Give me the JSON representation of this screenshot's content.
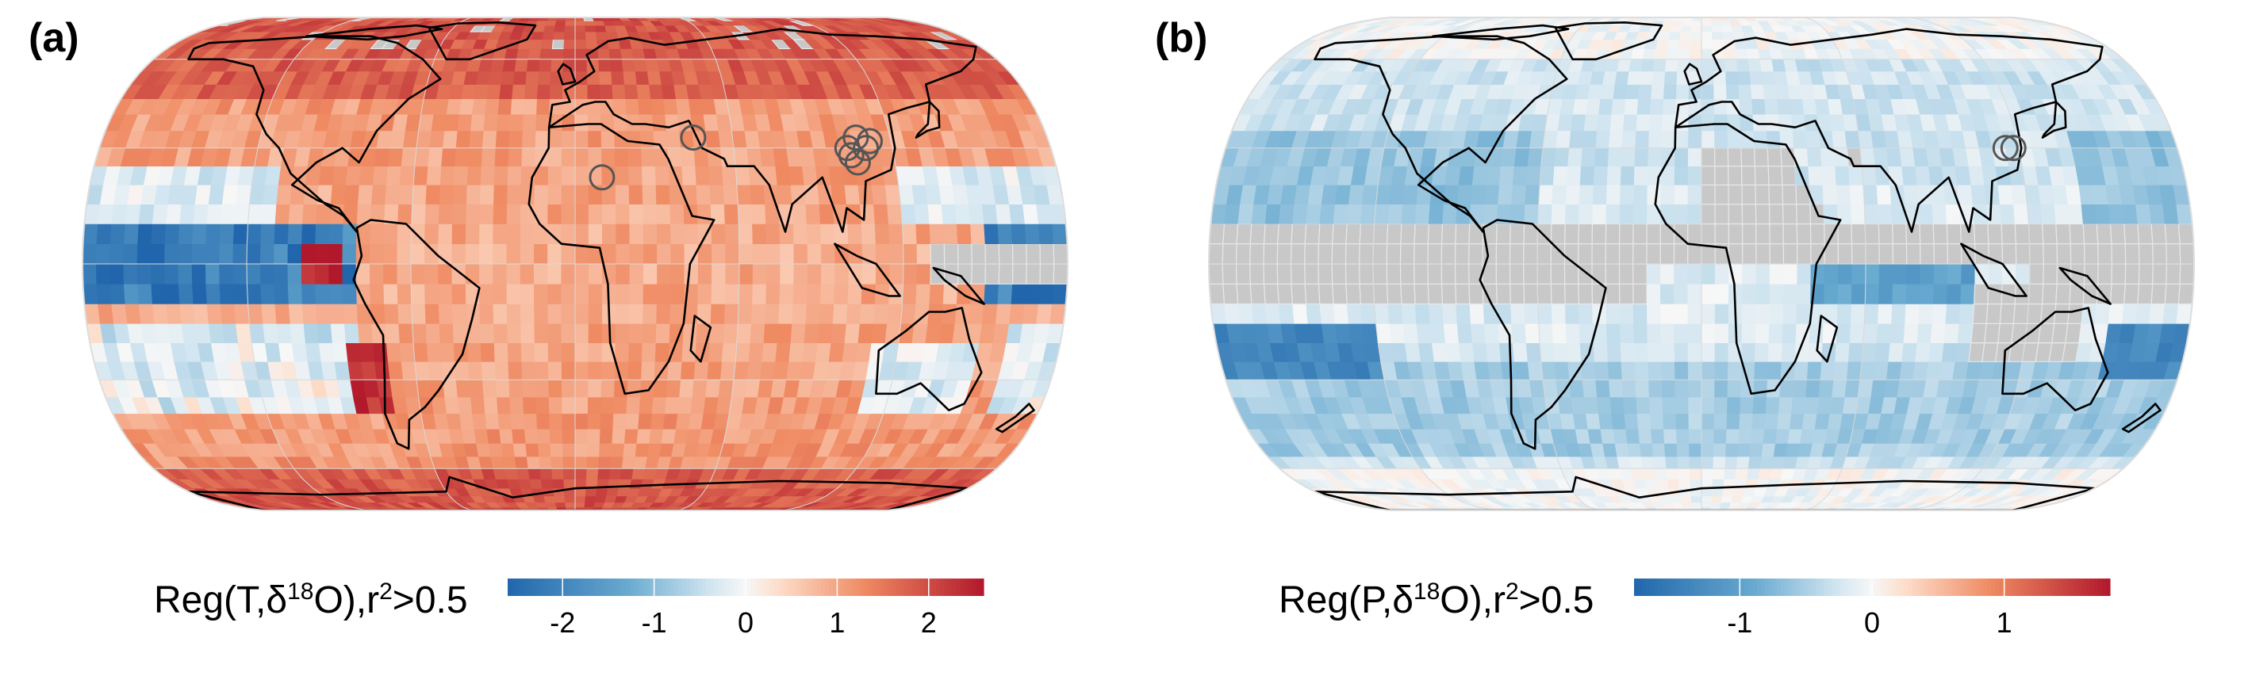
{
  "panels": [
    {
      "letter": "(a)",
      "colorbar": {
        "label_prefix": "Reg(T,",
        "label_delta": "δ",
        "label_sup": "18",
        "label_mid": "O),r",
        "label_sup2": "2",
        "label_suffix": ">0.5",
        "ticks": [
          "-2",
          "-1",
          "0",
          "1",
          "2"
        ],
        "range": [
          -2.6,
          2.6
        ]
      },
      "site_markers": [
        {
          "lon": 45,
          "lat": 33
        },
        {
          "lon": 10,
          "lat": 22
        },
        {
          "lon": 103,
          "lat": 30
        },
        {
          "lon": 107,
          "lat": 33
        },
        {
          "lon": 104,
          "lat": 28
        },
        {
          "lon": 106,
          "lat": 26
        },
        {
          "lon": 110,
          "lat": 30
        },
        {
          "lon": 112,
          "lat": 32
        }
      ]
    },
    {
      "letter": "(b)",
      "colorbar": {
        "label_prefix": "Reg(P,",
        "label_delta": "δ",
        "label_sup": "18",
        "label_mid": "O),r",
        "label_sup2": "2",
        "label_suffix": ">0.5",
        "ticks": [
          "-1",
          "0",
          "1"
        ],
        "range": [
          -1.8,
          1.8
        ]
      },
      "site_markers": [
        {
          "lon": 115,
          "lat": 30
        },
        {
          "lon": 118,
          "lat": 30
        }
      ]
    }
  ],
  "colors": {
    "negative": "#2166ac",
    "neutral": "#f7f7f7",
    "positive": "#b2182b",
    "insignificant": "#c8c8c8",
    "coast": "#000000"
  }
}
